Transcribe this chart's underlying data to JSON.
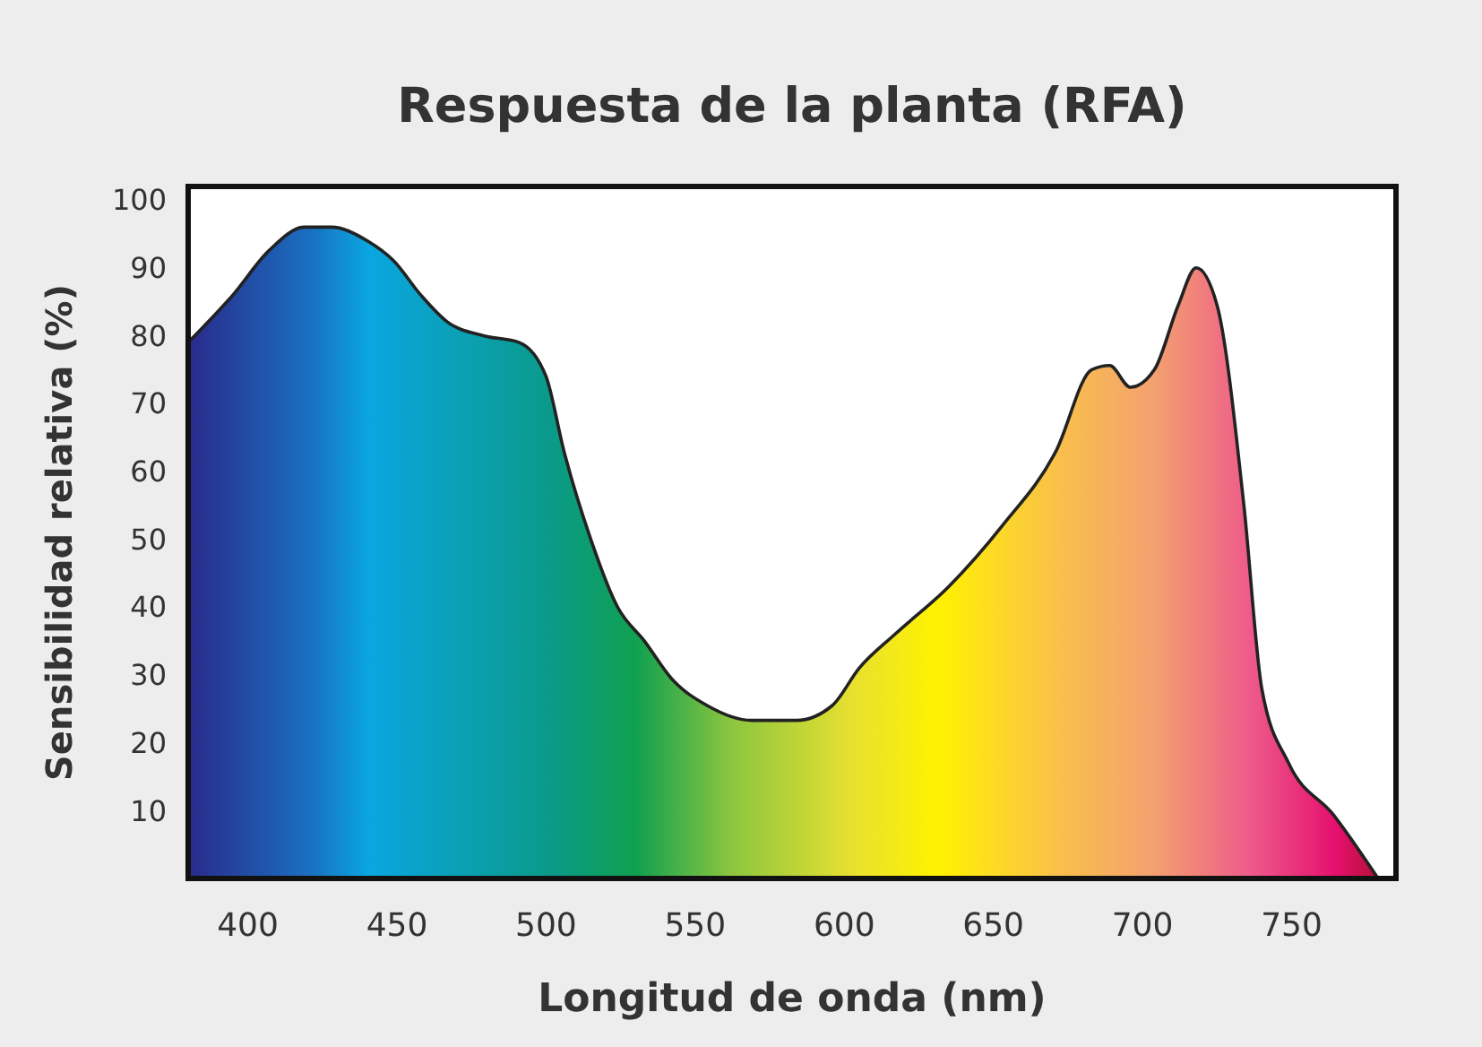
{
  "chart_data": {
    "type": "area",
    "title": "Respuesta de la planta (RFA)",
    "xlabel": "Longitud de onda (nm)",
    "ylabel": "Sensibilidad relativa (%)",
    "x": [
      380,
      395,
      407,
      419,
      428,
      440,
      449,
      458,
      467,
      479,
      491,
      500,
      506,
      515,
      524,
      533,
      542,
      554,
      569,
      584,
      596,
      605,
      617,
      635,
      653,
      671,
      683,
      689,
      696,
      704,
      712,
      718,
      725,
      734,
      740,
      749,
      764,
      779
    ],
    "series": [
      {
        "values": [
          79,
          86,
          92.5,
          96,
          96,
          94,
          91,
          86,
          82,
          80,
          79,
          74,
          63,
          50,
          40,
          35,
          29.5,
          25.5,
          23.3,
          23.3,
          25.5,
          31,
          36,
          43,
          52,
          63,
          75,
          75.6,
          72.4,
          75,
          84.5,
          90,
          84.5,
          55,
          28,
          17,
          9.4,
          0
        ]
      }
    ],
    "xlim": [
      380,
      785
    ],
    "xticks": [
      400,
      450,
      500,
      550,
      600,
      650,
      700,
      750
    ],
    "ylim": [
      0,
      102
    ],
    "yticks": [
      10,
      20,
      30,
      40,
      50,
      60,
      70,
      80,
      90,
      100
    ],
    "grid": false
  }
}
